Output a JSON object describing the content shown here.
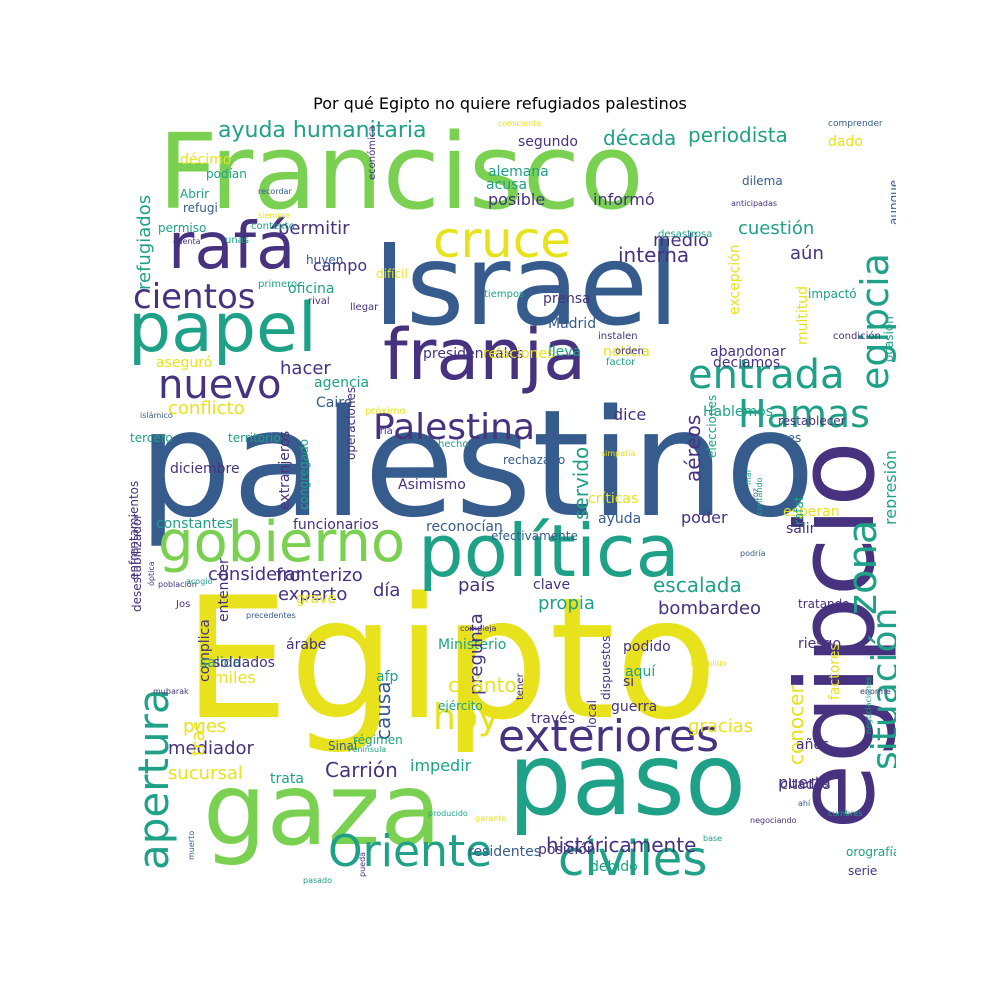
{
  "title": "Por qué Egipto no quiere refugiados palestinos",
  "colors": {
    "yellow": "#e8e21c",
    "green": "#7ad151",
    "teal": "#1fa187",
    "blue": "#365c8d",
    "purple": "#46327e",
    "darkpurple": "#440154"
  },
  "words": [
    "Francisco",
    "Israel",
    "palestino",
    "Egipto",
    "paso",
    "gaza",
    "egipcio",
    "política",
    "gobierno",
    "papel",
    "franja",
    "rafá",
    "cruce",
    "Palestina",
    "Hamas",
    "entrada",
    "nuevo",
    "cientos",
    "exteriores",
    "Oriente",
    "civiles",
    "hoy",
    "apertura",
    "zona",
    "situación",
    "egipcia",
    "ayuda humanitaria",
    "periodista",
    "década",
    "refugiados",
    "décimo",
    "podían",
    "Abrir",
    "refugi",
    "permiso",
    "permitir",
    "campo",
    "oficina",
    "aseguró",
    "hacer",
    "agencia",
    "conflicto",
    "Cairo",
    "dice",
    "cuestión",
    "aún",
    "interna",
    "medio",
    "represión",
    "fronterizo",
    "experto",
    "día",
    "país",
    "escalada",
    "propia",
    "bombardeo",
    "funcionarios",
    "reconocían",
    "Asimismo",
    "Ministerio",
    "causa",
    "miles",
    "afp",
    "pregunta",
    "pues",
    "mediador",
    "sucursal",
    "Carrión",
    "impedir",
    "trata",
    "tras",
    "históricamente",
    "puerta",
    "debido",
    "posición",
    "residentes",
    "conocer",
    "gracias",
    "guerra",
    "través",
    "ejército",
    "régimen",
    "Sinaí",
    "servido",
    "críticas",
    "ayuda",
    "aéreos",
    "poder",
    "esperan",
    "salir",
    "clave",
    "considerar",
    "grave",
    "alemana",
    "acusa",
    "posible",
    "informó",
    "dilema",
    "segundo",
    "dado",
    "aunque",
    "comprender",
    "presidenciales",
    "relaciones",
    "prensa",
    "Madrid",
    "lleva",
    "abandonar",
    "decíamos",
    "noticia",
    "Hablemos",
    "restablecer",
    "ataques",
    "efectivamente",
    "rechazado",
    "excepción",
    "multitud",
    "impactó",
    "ocasión",
    "extranjeros",
    "congregado",
    "enfrentamientos",
    "desestabilizador",
    "complica",
    "entender",
    "salida",
    "soldados",
    "árabe",
    "cuánto",
    "si",
    "aquí",
    "podido",
    "riesgo",
    "tratando",
    "años",
    "factores",
    "citados",
    "orografía",
    "serie",
    "rafat",
    "elecciones",
    "operaciones",
    "diciembre",
    "tercero",
    "territorio",
    "constantes",
    "difícil",
    "desastrosa",
    "huyen",
    "primero",
    "rival",
    "llegar",
    "tiempos",
    "orden",
    "instalen",
    "factor",
    "condición",
    "próximo",
    "iría",
    "hecho",
    "islámico",
    "económica",
    "siempre",
    "recordar",
    "contexto",
    "unas",
    "cuenta",
    "consciente",
    "anticipadas",
    "simpatía",
    "mar",
    "feroz",
    "podría",
    "contando",
    "cumplido",
    "enorme",
    "negociaciones",
    "mubarak",
    "óptica",
    "población",
    "acogió",
    "precedentes",
    "compleja",
    "Jos",
    "tener",
    "local",
    "dispuestos",
    "muerto",
    "Península",
    "pasado",
    "sharmel",
    "pueda",
    "producido",
    "garante",
    "base",
    "negociando",
    "ahí",
    "cumbres",
    "rojo"
  ]
}
